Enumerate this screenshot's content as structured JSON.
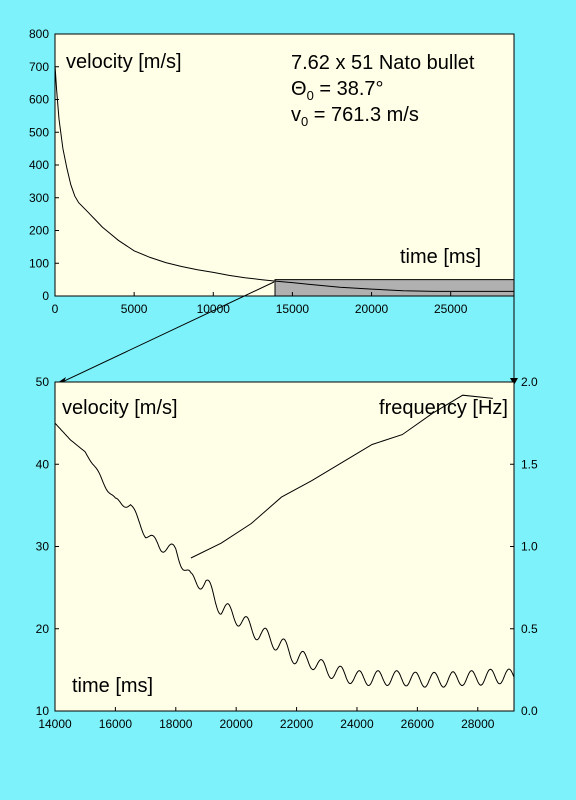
{
  "background_color": "#7ef2fa",
  "panel_color": "#ffffe8",
  "highlight_color": "#b0b0b0",
  "chart_data": [
    {
      "type": "line",
      "xlim": [
        0,
        29000
      ],
      "ylim": [
        0,
        800
      ],
      "x_ticks": [
        0,
        5000,
        10000,
        15000,
        20000,
        25000
      ],
      "y_ticks": [
        0,
        100,
        200,
        300,
        400,
        500,
        600,
        700,
        800
      ],
      "ylabel": "velocity [m/s]",
      "xlabel": "time [ms]",
      "annotation": {
        "line1": "7.62 x 51 Nato bullet",
        "line2_sym": "Θ",
        "line2_sub": "0",
        "line2_rest": " = 38.7°",
        "line3_sym": "v",
        "line3_sub": "0",
        "line3_rest": " = 761.3 m/s"
      },
      "highlight_region": {
        "x": [
          13900,
          29000
        ],
        "y": [
          0,
          50
        ]
      },
      "series": [
        {
          "x": [
            0,
            100,
            250,
            500,
            750,
            1000,
            1250,
            1500,
            2000,
            2500,
            3000,
            3500,
            4000,
            5000,
            6000,
            7000,
            8000,
            9000,
            10000,
            11000,
            12000,
            13000,
            14000,
            15000,
            16000,
            18000,
            20000,
            22000,
            24000,
            26000,
            28000,
            29000
          ],
          "y": [
            705,
            630,
            540,
            450,
            390,
            340,
            305,
            285,
            260,
            235,
            210,
            190,
            170,
            138,
            118,
            102,
            90,
            80,
            72,
            63,
            56,
            50,
            45,
            41,
            36,
            27,
            21,
            16,
            14,
            14,
            14,
            14
          ]
        }
      ]
    },
    {
      "type": "line",
      "xlim": [
        14000,
        29200
      ],
      "ylim": [
        10,
        50
      ],
      "y2lim": [
        0,
        2
      ],
      "x_ticks": [
        14000,
        16000,
        18000,
        20000,
        22000,
        24000,
        26000,
        28000
      ],
      "y_ticks": [
        10,
        20,
        30,
        40,
        50
      ],
      "y2_ticks": [
        "0.0",
        "0.5",
        "1.0",
        "1.5",
        "2.0"
      ],
      "ylabel": "velocity [m/s]",
      "y2label": "frequency [Hz]",
      "xlabel": "time [ms]",
      "series": [
        {
          "axis": "left",
          "x": [
            14000,
            14500,
            15000,
            15500,
            16000,
            16500,
            17000,
            17500,
            18000,
            18500,
            19000,
            19500,
            20000,
            20500,
            21000,
            21500,
            22000,
            22500,
            23000,
            23500,
            24000,
            24500,
            25000,
            25500,
            26000,
            26500,
            27000,
            27500,
            28000,
            28500,
            29000,
            29200
          ],
          "y": [
            45,
            43,
            41.5,
            38.5,
            35.5,
            35,
            31.5,
            30,
            29.5,
            26,
            25.5,
            22.5,
            21.5,
            20,
            19,
            18,
            16.5,
            16,
            15,
            14.5,
            14,
            14,
            14,
            14,
            13.8,
            13.8,
            13.8,
            14,
            14,
            14.2,
            14.2,
            14.2
          ],
          "oscillation_amplitude": [
            0,
            0,
            0,
            0.3,
            0.4,
            0.4,
            0.5,
            0.6,
            0.7,
            0.8,
            0.9,
            1.0,
            1.0,
            1.0,
            1.0,
            1.0,
            1.0,
            0.9,
            0.9,
            0.9,
            0.9,
            0.9,
            0.9,
            0.9,
            0.9,
            0.9,
            0.9,
            0.9,
            0.9,
            0.9,
            0.9,
            0.9
          ],
          "oscillation_period_ms": 620
        },
        {
          "axis": "right",
          "x": [
            18500,
            19500,
            20500,
            21500,
            22500,
            23500,
            24500,
            25500,
            26500,
            27500,
            28500
          ],
          "y": [
            0.93,
            1.02,
            1.14,
            1.3,
            1.4,
            1.51,
            1.62,
            1.68,
            1.81,
            1.92,
            1.9
          ]
        }
      ]
    }
  ]
}
